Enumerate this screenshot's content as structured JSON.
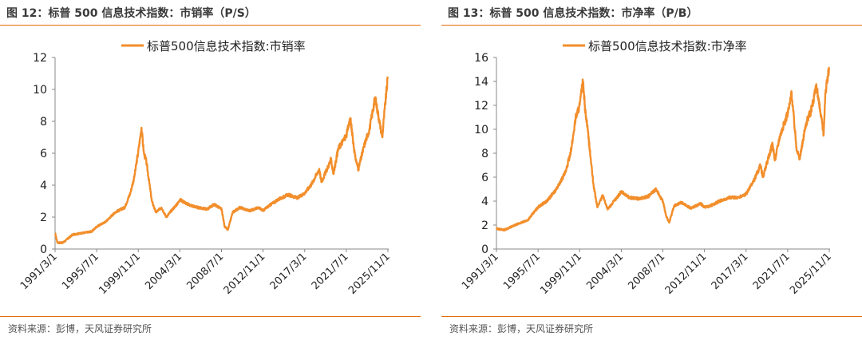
{
  "charts": [
    {
      "figure_title": "图 12：标普 500 信息技术指数：市销率（P/S）",
      "source": "资料来源：彭博，天风证券研究所"
    },
    {
      "figure_title": "图 13：标普 500 信息技术指数：市净率（P/B）",
      "source": "资料来源：彭博，天风证券研究所"
    }
  ],
  "colors": {
    "series": "#f28e2b",
    "accent_rule": "#e46c0a",
    "axis": "#888888"
  },
  "chart_data": [
    {
      "type": "line",
      "title": "",
      "legend": "top-center",
      "xlabel": "",
      "ylabel": "",
      "ylim": [
        0,
        12
      ],
      "yticks": [
        0,
        2,
        4,
        6,
        8,
        10,
        12
      ],
      "x_tick_labels": [
        "1991/3/1",
        "1995/7/1",
        "1999/11/1",
        "2004/3/1",
        "2008/7/1",
        "2012/11/1",
        "2017/3/1",
        "2021/7/1",
        "2025/11/1"
      ],
      "x_range": [
        "1991/3/1",
        "2025/12/1"
      ],
      "series": [
        {
          "name": "标普500信息技术指数:市销率",
          "color": "#f28e2b",
          "x": [
            "1991/3/1",
            "1991/6/1",
            "1992/1/1",
            "1993/1/1",
            "1994/1/1",
            "1995/1/1",
            "1995/7/1",
            "1996/6/1",
            "1997/6/1",
            "1998/6/1",
            "1999/1/1",
            "1999/6/1",
            "1999/11/1",
            "2000/3/1",
            "2000/6/1",
            "2000/9/1",
            "2001/4/1",
            "2001/9/1",
            "2002/4/1",
            "2002/10/1",
            "2003/6/1",
            "2004/1/1",
            "2004/3/1",
            "2005/1/1",
            "2006/1/1",
            "2007/1/1",
            "2007/10/1",
            "2008/7/1",
            "2008/11/1",
            "2009/3/1",
            "2009/9/1",
            "2010/6/1",
            "2011/6/1",
            "2012/6/1",
            "2012/11/1",
            "2013/6/1",
            "2014/6/1",
            "2015/6/1",
            "2016/6/1",
            "2017/3/1",
            "2017/12/1",
            "2018/9/1",
            "2018/12/1",
            "2019/6/1",
            "2019/12/1",
            "2020/3/1",
            "2020/9/1",
            "2021/7/1",
            "2021/12/1",
            "2022/6/1",
            "2022/10/1",
            "2023/6/1",
            "2023/12/1",
            "2024/7/1",
            "2025/4/1",
            "2025/6/1",
            "2025/11/1"
          ],
          "values": [
            1.0,
            0.4,
            0.4,
            0.9,
            1.0,
            1.1,
            1.4,
            1.7,
            2.3,
            2.6,
            3.5,
            4.5,
            6.1,
            7.6,
            6.0,
            5.5,
            3.0,
            2.3,
            2.6,
            2.0,
            2.5,
            2.9,
            3.1,
            2.8,
            2.6,
            2.5,
            2.8,
            2.5,
            1.4,
            1.2,
            2.3,
            2.6,
            2.4,
            2.6,
            2.4,
            2.7,
            3.1,
            3.4,
            3.2,
            3.5,
            4.1,
            5.0,
            4.2,
            4.9,
            5.6,
            4.7,
            6.3,
            7.1,
            8.2,
            5.8,
            5.0,
            6.6,
            7.5,
            9.5,
            7.0,
            8.2,
            10.8
          ]
        }
      ]
    },
    {
      "type": "line",
      "title": "",
      "legend": "top-center",
      "xlabel": "",
      "ylabel": "",
      "ylim": [
        0,
        16
      ],
      "yticks": [
        0,
        2,
        4,
        6,
        8,
        10,
        12,
        14,
        16
      ],
      "x_tick_labels": [
        "1991/3/1",
        "1995/7/1",
        "1999/11/1",
        "2004/3/1",
        "2008/7/1",
        "2012/11/1",
        "2017/3/1",
        "2021/7/1",
        "2025/11/1"
      ],
      "x_range": [
        "1991/3/1",
        "2025/12/1"
      ],
      "series": [
        {
          "name": "标普500信息技术指数:市净率",
          "color": "#f28e2b",
          "x": [
            "1991/3/1",
            "1992/1/1",
            "1993/6/1",
            "1994/6/1",
            "1995/7/1",
            "1996/6/1",
            "1997/6/1",
            "1998/6/1",
            "1999/1/1",
            "1999/6/1",
            "1999/11/1",
            "2000/3/1",
            "2000/6/1",
            "2000/9/1",
            "2001/4/1",
            "2001/9/1",
            "2002/4/1",
            "2002/10/1",
            "2003/6/1",
            "2004/1/1",
            "2004/3/1",
            "2005/1/1",
            "2006/1/1",
            "2007/1/1",
            "2007/10/1",
            "2008/7/1",
            "2008/11/1",
            "2009/3/1",
            "2009/9/1",
            "2010/6/1",
            "2011/6/1",
            "2012/6/1",
            "2012/11/1",
            "2013/6/1",
            "2014/6/1",
            "2015/6/1",
            "2016/6/1",
            "2017/3/1",
            "2017/12/1",
            "2018/9/1",
            "2018/12/1",
            "2019/6/1",
            "2019/12/1",
            "2020/3/1",
            "2020/9/1",
            "2021/7/1",
            "2021/12/1",
            "2022/6/1",
            "2022/10/1",
            "2023/6/1",
            "2023/12/1",
            "2024/7/1",
            "2025/4/1",
            "2025/6/1",
            "2025/11/1"
          ],
          "values": [
            1.7,
            1.6,
            2.1,
            2.4,
            3.5,
            4.0,
            5.0,
            6.5,
            8.5,
            11.0,
            12.0,
            14.0,
            11.5,
            10.0,
            5.5,
            3.5,
            4.5,
            3.3,
            4.0,
            4.6,
            4.8,
            4.3,
            4.2,
            4.4,
            5.0,
            4.0,
            2.8,
            2.2,
            3.6,
            3.9,
            3.4,
            3.8,
            3.5,
            3.6,
            4.0,
            4.3,
            4.3,
            4.6,
            5.6,
            7.0,
            6.0,
            7.4,
            8.8,
            7.4,
            9.4,
            11.3,
            13.0,
            8.5,
            7.5,
            10.5,
            11.5,
            13.6,
            9.6,
            13.0,
            15.2
          ]
        }
      ]
    }
  ]
}
